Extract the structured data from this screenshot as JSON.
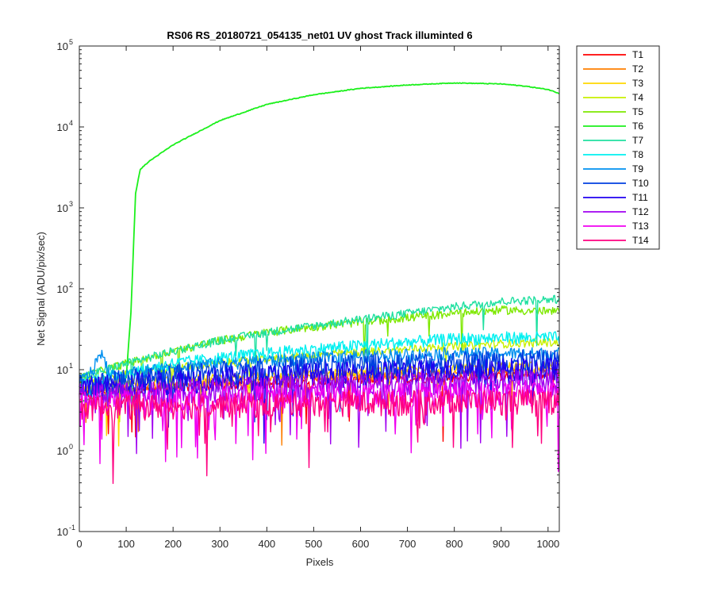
{
  "chart_data": {
    "type": "line",
    "title": "RS06 RS_20180721_054135_net01   UV ghost        Track illuminted 6",
    "xlabel": "Pixels",
    "ylabel": "Net Signal (ADU/pix/sec)",
    "xlim": [
      0,
      1024
    ],
    "ylim": [
      0.1,
      100000
    ],
    "yscale": "log",
    "xticks": [
      0,
      100,
      200,
      300,
      400,
      500,
      600,
      700,
      800,
      900,
      1000
    ],
    "yticks": [
      {
        "base": "10",
        "exp": "-1",
        "value": 0.1
      },
      {
        "base": "10",
        "exp": "0",
        "value": 1
      },
      {
        "base": "10",
        "exp": "1",
        "value": 10
      },
      {
        "base": "10",
        "exp": "2",
        "value": 100
      },
      {
        "base": "10",
        "exp": "3",
        "value": 1000
      },
      {
        "base": "10",
        "exp": "4",
        "value": 10000
      },
      {
        "base": "10",
        "exp": "5",
        "value": 100000
      }
    ],
    "grid": false,
    "legend_position": "outside-right-top",
    "series": [
      {
        "name": "T1",
        "color": "#ff0000",
        "x": [
          0,
          100,
          200,
          300,
          400,
          500,
          600,
          700,
          800,
          900,
          1024
        ],
        "y": [
          5,
          5.5,
          6,
          6.3,
          6.6,
          7,
          7.3,
          7.6,
          8,
          8.3,
          8.5
        ]
      },
      {
        "name": "T2",
        "color": "#ff7f00",
        "x": [
          0,
          100,
          200,
          300,
          400,
          500,
          600,
          700,
          800,
          900,
          1024
        ],
        "y": [
          5.5,
          6,
          6.5,
          7,
          7.5,
          8,
          8.3,
          8.7,
          9,
          9.3,
          9.5
        ]
      },
      {
        "name": "T3",
        "color": "#ffd700",
        "x": [
          0,
          100,
          200,
          300,
          400,
          500,
          600,
          700,
          800,
          900,
          1024
        ],
        "y": [
          6,
          7,
          7.5,
          8,
          8.5,
          9,
          9.5,
          10,
          10.5,
          11,
          11.5
        ]
      },
      {
        "name": "T4",
        "color": "#c8f000",
        "x": [
          0,
          100,
          200,
          300,
          400,
          500,
          600,
          700,
          800,
          900,
          1024
        ],
        "y": [
          7,
          9,
          10.5,
          12,
          13.5,
          15,
          16.5,
          18,
          19.5,
          21,
          22
        ]
      },
      {
        "name": "T5",
        "color": "#7ee800",
        "x": [
          0,
          100,
          200,
          300,
          400,
          500,
          600,
          700,
          800,
          900,
          1024
        ],
        "y": [
          8,
          12,
          17,
          23,
          29,
          34,
          39,
          44,
          50,
          55,
          52
        ]
      },
      {
        "name": "T6",
        "color": "#1cf01c",
        "x": [
          0,
          60,
          100,
          110,
          120,
          130,
          150,
          200,
          300,
          400,
          500,
          600,
          700,
          800,
          900,
          950,
          1000,
          1024
        ],
        "y": [
          4,
          5,
          8,
          50,
          1500,
          3000,
          3800,
          6000,
          12000,
          19000,
          25000,
          30000,
          33000,
          35000,
          34000,
          32000,
          29000,
          26000
        ]
      },
      {
        "name": "T7",
        "color": "#20e0a0",
        "x": [
          0,
          100,
          200,
          300,
          400,
          500,
          600,
          700,
          800,
          900,
          1024
        ],
        "y": [
          8,
          12,
          17,
          23,
          29,
          35,
          42,
          50,
          60,
          70,
          75
        ]
      },
      {
        "name": "T8",
        "color": "#00f0f0",
        "x": [
          0,
          100,
          200,
          300,
          400,
          500,
          600,
          700,
          800,
          900,
          1024
        ],
        "y": [
          7,
          9,
          12,
          14,
          16,
          18,
          20,
          22,
          24,
          25,
          25
        ]
      },
      {
        "name": "T9",
        "color": "#0090f0",
        "x": [
          0,
          30,
          45,
          55,
          70,
          100,
          200,
          300,
          400,
          500,
          600,
          700,
          800,
          900,
          1024
        ],
        "y": [
          7,
          10,
          17,
          12,
          9,
          9,
          11,
          12,
          13,
          14,
          15,
          15.5,
          16,
          16,
          16
        ]
      },
      {
        "name": "T10",
        "color": "#0040e0",
        "x": [
          0,
          100,
          200,
          300,
          400,
          500,
          600,
          700,
          800,
          900,
          1024
        ],
        "y": [
          6.5,
          7.5,
          8.5,
          9.5,
          10.5,
          11,
          11.5,
          12,
          12.5,
          13,
          13
        ]
      },
      {
        "name": "T11",
        "color": "#2000f0",
        "x": [
          0,
          100,
          200,
          300,
          400,
          500,
          600,
          700,
          800,
          900,
          1024
        ],
        "y": [
          6,
          6.8,
          7.5,
          8,
          8.5,
          9,
          9.3,
          9.6,
          10,
          10.2,
          10.5
        ]
      },
      {
        "name": "T12",
        "color": "#a000f0",
        "x": [
          0,
          100,
          200,
          300,
          400,
          500,
          600,
          700,
          800,
          900,
          1024
        ],
        "y": [
          5,
          5.3,
          5.6,
          6,
          6.3,
          6.5,
          6.8,
          7,
          7.2,
          7.4,
          7.5
        ]
      },
      {
        "name": "T13",
        "color": "#f000f0",
        "x": [
          0,
          100,
          200,
          300,
          400,
          500,
          600,
          700,
          800,
          900,
          1024
        ],
        "y": [
          4,
          4.2,
          4.4,
          4.6,
          4.8,
          5,
          5,
          5.2,
          5.3,
          5.4,
          5.5
        ]
      },
      {
        "name": "T14",
        "color": "#ff0080",
        "x": [
          0,
          100,
          200,
          300,
          400,
          500,
          600,
          700,
          800,
          900,
          1024
        ],
        "y": [
          3.5,
          3.6,
          3.7,
          3.8,
          3.9,
          4,
          4,
          4.1,
          4.2,
          4.2,
          4.3
        ]
      }
    ]
  }
}
